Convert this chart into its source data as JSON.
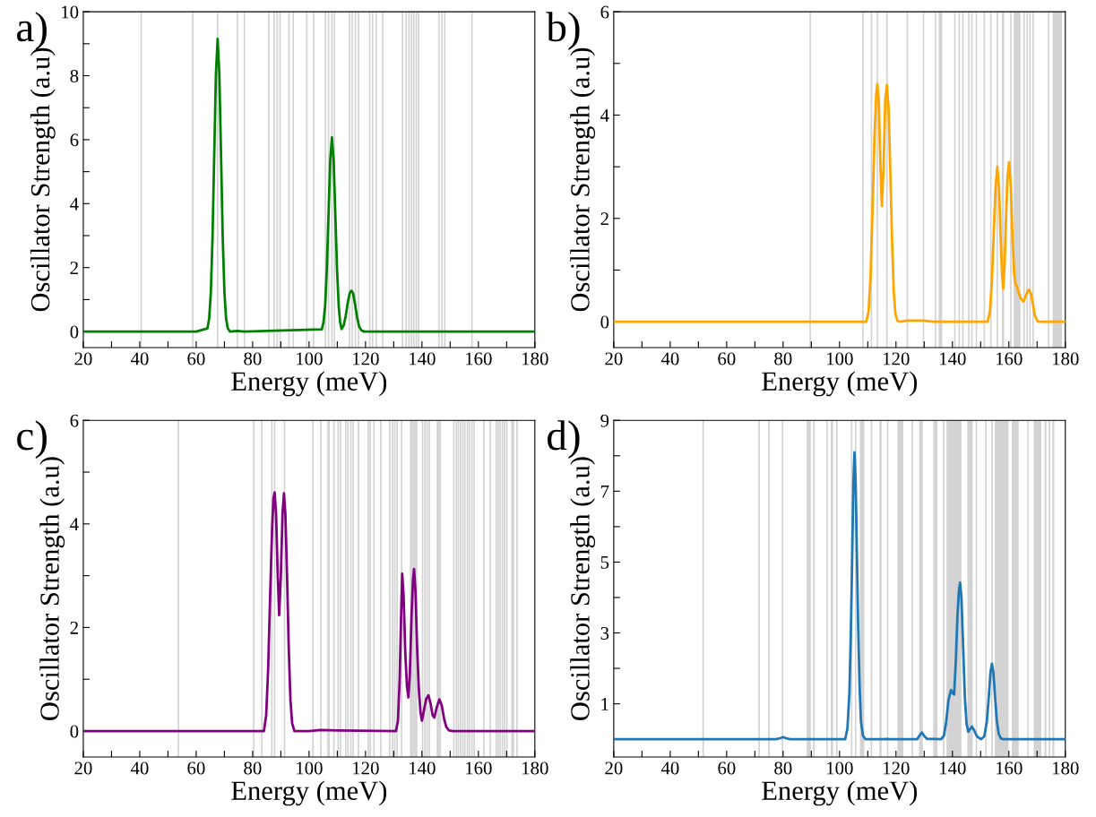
{
  "chart_data": [
    {
      "type": "line",
      "title": "a)",
      "xlabel": "Energy (meV)",
      "ylabel": "Oscillator Strength (a.u)",
      "xlim": [
        20,
        180
      ],
      "ylim": [
        -0.5,
        10
      ],
      "xticks": [
        20,
        {
          "value": 30,
          "label": null
        },
        40,
        {
          "value": 50,
          "label": null
        },
        60,
        {
          "value": 70,
          "label": null
        },
        80,
        {
          "value": 90,
          "label": null
        },
        100,
        {
          "value": 110,
          "label": null
        },
        120,
        {
          "value": 130,
          "label": null
        },
        140,
        {
          "value": 150,
          "label": null
        },
        160,
        {
          "value": 170,
          "label": null
        },
        180
      ],
      "yticks": [
        0,
        {
          "value": 1,
          "label": null
        },
        2,
        {
          "value": 3,
          "label": null
        },
        4,
        {
          "value": 5,
          "label": null
        },
        6,
        {
          "value": 7,
          "label": null
        },
        8,
        {
          "value": 9,
          "label": null
        },
        10
      ],
      "grid": false,
      "legend": false,
      "marker": "none",
      "line_style": "solid",
      "series": [
        {
          "color": "#008000",
          "x": [
            20,
            60,
            64.0,
            64.6,
            65.2,
            65.8,
            66.4,
            67.0,
            67.6,
            68.2,
            68.8,
            69.4,
            70.0,
            70.6,
            71.2,
            72,
            74.6,
            77,
            104.5,
            105.1,
            105.7,
            106.3,
            106.9,
            107.5,
            108.1,
            108.7,
            109.3,
            109.9,
            110.5,
            111.0,
            111.5,
            112.3,
            113.0,
            113.7,
            114.4,
            115.0,
            115.6,
            116.3,
            117.0,
            117.7,
            118.5,
            119.5,
            180
          ],
          "values": [
            0,
            0,
            0.1,
            0.4,
            1.24,
            2.97,
            5.55,
            8.07,
            9.15,
            8.07,
            5.55,
            2.97,
            1.24,
            0.4,
            0.1,
            0,
            0.02,
            0,
            0.07,
            0.27,
            0.82,
            1.97,
            3.68,
            5.36,
            6.07,
            5.36,
            3.68,
            1.97,
            0.8,
            0.3,
            0.08,
            0.2,
            0.5,
            0.9,
            1.2,
            1.28,
            1.2,
            0.85,
            0.45,
            0.17,
            0.04,
            0,
            0
          ]
        }
      ],
      "ref_lines": [
        {
          "axis": "x",
          "value": 40.5,
          "color": "#d3d3d3"
        },
        {
          "axis": "x",
          "value": 58.8,
          "color": "#d3d3d3"
        },
        {
          "axis": "x",
          "value": 67.6,
          "color": "#d3d3d3"
        },
        {
          "axis": "x",
          "value": 74.6,
          "color": "#d3d3d3"
        },
        {
          "axis": "x",
          "value": 77.1,
          "color": "#d3d3d3"
        },
        {
          "axis": "x",
          "value": 85.7,
          "color": "#d3d3d3"
        },
        {
          "axis": "x",
          "value": 87.6,
          "color": "#d3d3d3"
        },
        {
          "axis": "x",
          "value": 88.7,
          "color": "#d3d3d3"
        },
        {
          "axis": "x",
          "value": 89.7,
          "color": "#d3d3d3"
        },
        {
          "axis": "x",
          "value": 92.9,
          "color": "#d3d3d3"
        },
        {
          "axis": "x",
          "value": 94.4,
          "color": "#d3d3d3"
        },
        {
          "axis": "x",
          "value": 99.2,
          "color": "#d3d3d3"
        },
        {
          "axis": "x",
          "value": 101.6,
          "color": "#d3d3d3"
        },
        {
          "axis": "x",
          "value": 105.8,
          "color": "#d3d3d3"
        },
        {
          "axis": "x",
          "value": 106.9,
          "color": "#d3d3d3"
        },
        {
          "axis": "x",
          "value": 108.1,
          "color": "#d3d3d3"
        },
        {
          "axis": "x",
          "value": 109.0,
          "color": "#d3d3d3"
        },
        {
          "axis": "x",
          "value": 114.3,
          "color": "#d3d3d3"
        },
        {
          "axis": "x",
          "value": 115.3,
          "color": "#d3d3d3"
        },
        {
          "axis": "x",
          "value": 116.4,
          "color": "#d3d3d3"
        },
        {
          "axis": "x",
          "value": 117.5,
          "color": "#d3d3d3"
        },
        {
          "axis": "x",
          "value": 121.5,
          "color": "#d3d3d3"
        },
        {
          "axis": "x",
          "value": 122.5,
          "color": "#d3d3d3"
        },
        {
          "axis": "x",
          "value": 123.8,
          "color": "#d3d3d3"
        },
        {
          "axis": "x",
          "value": 126.1,
          "color": "#d3d3d3"
        },
        {
          "axis": "x",
          "value": 133.1,
          "color": "#d3d3d3"
        },
        {
          "axis": "x",
          "value": 134.4,
          "color": "#d3d3d3"
        },
        {
          "axis": "x",
          "value": 135.4,
          "color": "#d3d3d3"
        },
        {
          "axis": "x",
          "value": 136.3,
          "color": "#d3d3d3"
        },
        {
          "axis": "x",
          "value": 137.1,
          "color": "#d3d3d3"
        },
        {
          "axis": "x",
          "value": 138.0,
          "color": "#d3d3d3"
        },
        {
          "axis": "x",
          "value": 138.8,
          "color": "#d3d3d3"
        },
        {
          "axis": "x",
          "value": 146.0,
          "color": "#d3d3d3"
        },
        {
          "axis": "x",
          "value": 147.1,
          "color": "#d3d3d3"
        },
        {
          "axis": "x",
          "value": 148.1,
          "color": "#d3d3d3"
        },
        {
          "axis": "x",
          "value": 157.7,
          "color": "#d3d3d3"
        }
      ]
    },
    {
      "type": "line",
      "title": "b)",
      "xlabel": "Energy (meV)",
      "ylabel": "Oscillator Strength (a.u)",
      "xlim": [
        20,
        180
      ],
      "ylim": [
        -0.5,
        6
      ],
      "xticks": [
        20,
        {
          "value": 30,
          "label": null
        },
        40,
        {
          "value": 50,
          "label": null
        },
        60,
        {
          "value": 70,
          "label": null
        },
        80,
        {
          "value": 90,
          "label": null
        },
        100,
        {
          "value": 110,
          "label": null
        },
        120,
        {
          "value": 130,
          "label": null
        },
        140,
        {
          "value": 150,
          "label": null
        },
        160,
        {
          "value": 170,
          "label": null
        },
        180
      ],
      "yticks": [
        0,
        {
          "value": 1,
          "label": null
        },
        2,
        {
          "value": 3,
          "label": null
        },
        4,
        {
          "value": 5,
          "label": null
        },
        6
      ],
      "grid": false,
      "legend": false,
      "marker": "none",
      "line_style": "solid",
      "series": [
        {
          "color": "#ffa500",
          "x": [
            20,
            109.5,
            110.3,
            111.0,
            111.7,
            112.4,
            113.0,
            113.4,
            113.9,
            114.5,
            115.0,
            115.6,
            116.2,
            116.8,
            117.4,
            118.0,
            118.6,
            119.2,
            119.8,
            120.5,
            121.5,
            124,
            130,
            133,
            152.5,
            153.3,
            154.0,
            154.7,
            155.3,
            155.9,
            156.5,
            157.1,
            157.6,
            158.0,
            158.5,
            159.0,
            159.5,
            160.1,
            160.7,
            161.3,
            161.9,
            162.4,
            162.8,
            163.4,
            164.2,
            165.2,
            166.0,
            166.7,
            167.2,
            167.8,
            168.5,
            169.2,
            170.2,
            171,
            180
          ],
          "values": [
            0,
            0,
            0.2,
            0.9,
            2.2,
            3.6,
            4.4,
            4.6,
            4.3,
            3.0,
            2.24,
            3.0,
            4.3,
            4.58,
            4.1,
            2.9,
            1.6,
            0.6,
            0.15,
            0.02,
            0,
            0.02,
            0.02,
            0,
            0,
            0.2,
            0.8,
            1.8,
            2.6,
            3.0,
            2.6,
            1.6,
            0.9,
            0.64,
            1.1,
            2.0,
            2.8,
            3.09,
            2.6,
            1.6,
            0.9,
            0.72,
            0.69,
            0.58,
            0.45,
            0.39,
            0.5,
            0.6,
            0.62,
            0.55,
            0.35,
            0.12,
            0.01,
            0,
            0
          ]
        }
      ],
      "ref_lines": [
        {
          "axis": "x",
          "value": 89.6,
          "color": "#d3d3d3"
        },
        {
          "axis": "x",
          "value": 108.3,
          "color": "#d3d3d3"
        },
        {
          "axis": "x",
          "value": 111.3,
          "color": "#d3d3d3"
        },
        {
          "axis": "x",
          "value": 113.4,
          "color": "#d3d3d3"
        },
        {
          "axis": "x",
          "value": 116.8,
          "color": "#d3d3d3"
        },
        {
          "axis": "x",
          "value": 124.0,
          "color": "#d3d3d3"
        },
        {
          "axis": "x",
          "value": 134.0,
          "color": "#d3d3d3"
        },
        {
          "axis": "x",
          "value": 142.4,
          "color": "#d3d3d3"
        },
        {
          "axis": "x",
          "value": 143.7,
          "color": "#d3d3d3"
        },
        {
          "axis": "x",
          "value": 145.8,
          "color": "#d3d3d3"
        },
        {
          "axis": "x",
          "value": 146.9,
          "color": "#d3d3d3"
        },
        {
          "axis": "x",
          "value": 148.5,
          "color": "#d3d3d3"
        },
        {
          "axis": "x",
          "value": 151.3,
          "color": "#d3d3d3"
        },
        {
          "axis": "x",
          "value": 153.6,
          "color": "#d3d3d3"
        },
        {
          "axis": "x",
          "value": 155.9,
          "color": "#d3d3d3"
        },
        {
          "axis": "x",
          "value": 160.7,
          "color": "#d3d3d3"
        },
        {
          "axis": "x",
          "value": 165.4,
          "color": "#d3d3d3"
        },
        {
          "axis": "x",
          "value": 166.5,
          "color": "#d3d3d3"
        },
        {
          "axis": "x",
          "value": 167.5,
          "color": "#d3d3d3"
        },
        {
          "axis": "x",
          "value": 168.6,
          "color": "#d3d3d3"
        },
        {
          "axis": "x",
          "value": 174.1,
          "color": "#d3d3d3"
        }
      ],
      "bands": [
        {
          "axis": "x",
          "from": 129.5,
          "to": 130.0,
          "color": "#d3d3d3"
        },
        {
          "axis": "x",
          "from": 135.1,
          "to": 136.4,
          "color": "#d3d3d3"
        },
        {
          "axis": "x",
          "from": 140.6,
          "to": 141.1,
          "color": "#d3d3d3"
        },
        {
          "axis": "x",
          "from": 157.5,
          "to": 158.3,
          "color": "#d3d3d3"
        },
        {
          "axis": "x",
          "from": 161.7,
          "to": 164.1,
          "color": "#d3d3d3"
        },
        {
          "axis": "x",
          "from": 175.5,
          "to": 178.8,
          "color": "#d3d3d3"
        }
      ]
    },
    {
      "type": "line",
      "title": "c)",
      "xlabel": "Energy (meV)",
      "ylabel": "Oscillator Strength (a.u)",
      "xlim": [
        20,
        180
      ],
      "ylim": [
        -0.5,
        6
      ],
      "xticks": [
        20,
        {
          "value": 30,
          "label": null
        },
        40,
        {
          "value": 50,
          "label": null
        },
        60,
        {
          "value": 70,
          "label": null
        },
        80,
        {
          "value": 90,
          "label": null
        },
        100,
        {
          "value": 110,
          "label": null
        },
        120,
        {
          "value": 130,
          "label": null
        },
        140,
        {
          "value": 150,
          "label": null
        },
        160,
        {
          "value": 170,
          "label": null
        },
        180
      ],
      "yticks": [
        0,
        {
          "value": 1,
          "label": null
        },
        2,
        {
          "value": 3,
          "label": null
        },
        4,
        {
          "value": 5,
          "label": null
        },
        6
      ],
      "grid": false,
      "legend": false,
      "marker": "none",
      "line_style": "solid",
      "series": [
        {
          "color": "#800080",
          "x": [
            20,
            84,
            84.8,
            85.5,
            86.2,
            86.9,
            87.4,
            87.8,
            88.3,
            88.9,
            89.4,
            90.0,
            90.6,
            91.1,
            91.6,
            92.2,
            92.8,
            93.4,
            94.0,
            94.8,
            100,
            104,
            110,
            130.8,
            131.5,
            132.1,
            132.6,
            133.0,
            133.5,
            134.1,
            134.7,
            135.2,
            135.7,
            136.3,
            136.8,
            137.2,
            137.7,
            138.3,
            138.9,
            139.5,
            140.0,
            140.7,
            141.5,
            142.3,
            143.1,
            143.8,
            144.4,
            145.2,
            146.2,
            147.0,
            147.8,
            148.6,
            149.6,
            151,
            180
          ],
          "values": [
            0,
            0,
            0.3,
            1.2,
            2.6,
            3.9,
            4.5,
            4.61,
            4.2,
            3.0,
            2.24,
            3.0,
            4.2,
            4.59,
            4.2,
            3.0,
            1.6,
            0.6,
            0.15,
            0,
            0,
            0.02,
            0.01,
            0,
            0.2,
            1.0,
            2.2,
            3.04,
            2.6,
            1.5,
            0.85,
            0.65,
            1.1,
            2.2,
            2.9,
            3.13,
            2.7,
            1.6,
            0.8,
            0.35,
            0.2,
            0.4,
            0.62,
            0.69,
            0.52,
            0.3,
            0.26,
            0.45,
            0.61,
            0.5,
            0.25,
            0.08,
            0.01,
            0,
            0
          ]
        }
      ],
      "ref_lines": [
        {
          "axis": "x",
          "value": 53.7,
          "color": "#d3d3d3"
        },
        {
          "axis": "x",
          "value": 80.4,
          "color": "#d3d3d3"
        },
        {
          "axis": "x",
          "value": 83.3,
          "color": "#d3d3d3"
        },
        {
          "axis": "x",
          "value": 86.8,
          "color": "#d3d3d3"
        },
        {
          "axis": "x",
          "value": 87.8,
          "color": "#d3d3d3"
        },
        {
          "axis": "x",
          "value": 91.3,
          "color": "#d3d3d3"
        },
        {
          "axis": "x",
          "value": 101.4,
          "color": "#d3d3d3"
        },
        {
          "axis": "x",
          "value": 104.2,
          "color": "#d3d3d3"
        },
        {
          "axis": "x",
          "value": 106.7,
          "color": "#d3d3d3"
        },
        {
          "axis": "x",
          "value": 107.1,
          "color": "#d3d3d3"
        },
        {
          "axis": "x",
          "value": 108.8,
          "color": "#d3d3d3"
        },
        {
          "axis": "x",
          "value": 110.3,
          "color": "#d3d3d3"
        },
        {
          "axis": "x",
          "value": 111.1,
          "color": "#d3d3d3"
        },
        {
          "axis": "x",
          "value": 113.0,
          "color": "#d3d3d3"
        },
        {
          "axis": "x",
          "value": 113.8,
          "color": "#d3d3d3"
        },
        {
          "axis": "x",
          "value": 114.8,
          "color": "#d3d3d3"
        },
        {
          "axis": "x",
          "value": 115.6,
          "color": "#d3d3d3"
        },
        {
          "axis": "x",
          "value": 117.5,
          "color": "#d3d3d3"
        },
        {
          "axis": "x",
          "value": 121.0,
          "color": "#d3d3d3"
        },
        {
          "axis": "x",
          "value": 121.7,
          "color": "#d3d3d3"
        },
        {
          "axis": "x",
          "value": 123.0,
          "color": "#d3d3d3"
        },
        {
          "axis": "x",
          "value": 125.4,
          "color": "#d3d3d3"
        },
        {
          "axis": "x",
          "value": 128.6,
          "color": "#d3d3d3"
        },
        {
          "axis": "x",
          "value": 129.6,
          "color": "#d3d3d3"
        },
        {
          "axis": "x",
          "value": 130.4,
          "color": "#d3d3d3"
        },
        {
          "axis": "x",
          "value": 131.2,
          "color": "#d3d3d3"
        },
        {
          "axis": "x",
          "value": 132.8,
          "color": "#d3d3d3"
        },
        {
          "axis": "x",
          "value": 136.0,
          "color": "#d3d3d3"
        },
        {
          "axis": "x",
          "value": 136.5,
          "color": "#d3d3d3"
        },
        {
          "axis": "x",
          "value": 137.0,
          "color": "#d3d3d3"
        },
        {
          "axis": "x",
          "value": 137.6,
          "color": "#d3d3d3"
        },
        {
          "axis": "x",
          "value": 138.1,
          "color": "#d3d3d3"
        },
        {
          "axis": "x",
          "value": 140.2,
          "color": "#d3d3d3"
        },
        {
          "axis": "x",
          "value": 141.0,
          "color": "#d3d3d3"
        },
        {
          "axis": "x",
          "value": 141.8,
          "color": "#d3d3d3"
        },
        {
          "axis": "x",
          "value": 142.6,
          "color": "#d3d3d3"
        },
        {
          "axis": "x",
          "value": 145.5,
          "color": "#d3d3d3"
        },
        {
          "axis": "x",
          "value": 146.0,
          "color": "#d3d3d3"
        },
        {
          "axis": "x",
          "value": 146.5,
          "color": "#d3d3d3"
        },
        {
          "axis": "x",
          "value": 151.3,
          "color": "#d3d3d3"
        },
        {
          "axis": "x",
          "value": 152.2,
          "color": "#d3d3d3"
        },
        {
          "axis": "x",
          "value": 152.9,
          "color": "#d3d3d3"
        },
        {
          "axis": "x",
          "value": 153.7,
          "color": "#d3d3d3"
        },
        {
          "axis": "x",
          "value": 154.5,
          "color": "#d3d3d3"
        },
        {
          "axis": "x",
          "value": 155.2,
          "color": "#d3d3d3"
        },
        {
          "axis": "x",
          "value": 156.1,
          "color": "#d3d3d3"
        },
        {
          "axis": "x",
          "value": 156.8,
          "color": "#d3d3d3"
        },
        {
          "axis": "x",
          "value": 157.7,
          "color": "#d3d3d3"
        },
        {
          "axis": "x",
          "value": 158.5,
          "color": "#d3d3d3"
        },
        {
          "axis": "x",
          "value": 161.9,
          "color": "#d3d3d3"
        },
        {
          "axis": "x",
          "value": 164.2,
          "color": "#d3d3d3"
        },
        {
          "axis": "x",
          "value": 166.3,
          "color": "#d3d3d3"
        },
        {
          "axis": "x",
          "value": 167.0,
          "color": "#d3d3d3"
        },
        {
          "axis": "x",
          "value": 167.7,
          "color": "#d3d3d3"
        },
        {
          "axis": "x",
          "value": 168.5,
          "color": "#d3d3d3"
        },
        {
          "axis": "x",
          "value": 169.3,
          "color": "#d3d3d3"
        },
        {
          "axis": "x",
          "value": 170.1,
          "color": "#d3d3d3"
        },
        {
          "axis": "x",
          "value": 171.9,
          "color": "#d3d3d3"
        },
        {
          "axis": "x",
          "value": 172.4,
          "color": "#d3d3d3"
        },
        {
          "axis": "x",
          "value": 173.7,
          "color": "#d3d3d3"
        }
      ]
    },
    {
      "type": "line",
      "title": "d)",
      "xlabel": "Energy (meV)",
      "ylabel": "Oscillator Strength (a.u)",
      "xlim": [
        20,
        180
      ],
      "ylim": [
        -0.5,
        9
      ],
      "xticks": [
        20,
        {
          "value": 30,
          "label": null
        },
        40,
        {
          "value": 50,
          "label": null
        },
        60,
        {
          "value": 70,
          "label": null
        },
        80,
        {
          "value": 90,
          "label": null
        },
        100,
        {
          "value": 110,
          "label": null
        },
        120,
        {
          "value": 130,
          "label": null
        },
        140,
        {
          "value": 150,
          "label": null
        },
        160,
        {
          "value": 170,
          "label": null
        },
        180
      ],
      "yticks": [
        1,
        {
          "value": 2,
          "label": null
        },
        3,
        {
          "value": 4,
          "label": null
        },
        5,
        {
          "value": 6,
          "label": null
        },
        7,
        {
          "value": 8,
          "label": null
        },
        9
      ],
      "legend": false,
      "marker": "none",
      "line_style": "solid",
      "series": [
        {
          "color": "#1f77b4",
          "x": [
            20,
            77.5,
            79.0,
            80.0,
            81.0,
            82.5,
            102.0,
            102.8,
            103.5,
            104.0,
            104.5,
            104.9,
            105.3,
            105.7,
            106.1,
            106.6,
            107.1,
            107.6,
            108.3,
            109.2,
            115.5,
            116.8,
            118,
            127.5,
            128.3,
            129.2,
            130.1,
            131,
            133.7,
            136.0,
            137.0,
            137.8,
            138.6,
            139.5,
            140.1,
            140.6,
            141.2,
            141.8,
            142.3,
            142.7,
            143.2,
            143.8,
            144.4,
            145.0,
            145.6,
            146.2,
            146.9,
            147.7,
            148.7,
            150.1,
            151.3,
            152.2,
            152.9,
            153.5,
            154.0,
            154.5,
            155.1,
            155.7,
            156.4,
            157.2,
            158,
            180
          ],
          "values": [
            0,
            0,
            0.03,
            0.06,
            0.03,
            0,
            0,
            0.3,
            1.3,
            3.0,
            5.2,
            7.2,
            8.1,
            7.3,
            5.5,
            3.2,
            1.5,
            0.5,
            0.1,
            0,
            0,
            0.01,
            0,
            0,
            0.1,
            0.19,
            0.08,
            0.01,
            0.01,
            0,
            0.1,
            0.5,
            1.1,
            1.39,
            1.3,
            1.26,
            2.2,
            3.5,
            4.2,
            4.42,
            4.0,
            2.6,
            1.2,
            0.45,
            0.21,
            0.28,
            0.36,
            0.25,
            0.08,
            0.0,
            0.08,
            0.5,
            1.2,
            1.9,
            2.13,
            1.9,
            1.2,
            0.55,
            0.15,
            0.02,
            0,
            0
          ]
        }
      ],
      "ref_lines": [
        {
          "axis": "x",
          "value": 71.5,
          "color": "#d3d3d3"
        },
        {
          "axis": "x",
          "value": 79.8,
          "color": "#d3d3d3"
        },
        {
          "axis": "x",
          "value": 90.9,
          "color": "#d3d3d3"
        },
        {
          "axis": "x",
          "value": 95.6,
          "color": "#d3d3d3"
        },
        {
          "axis": "x",
          "value": 104.3,
          "color": "#d3d3d3"
        },
        {
          "axis": "x",
          "value": 105.7,
          "color": "#d3d3d3"
        },
        {
          "axis": "x",
          "value": 111.3,
          "color": "#d3d3d3"
        },
        {
          "axis": "x",
          "value": 125.8,
          "color": "#d3d3d3"
        },
        {
          "axis": "x",
          "value": 136.9,
          "color": "#d3d3d3"
        },
        {
          "axis": "x",
          "value": 148.5,
          "color": "#d3d3d3"
        },
        {
          "axis": "x",
          "value": 151.9,
          "color": "#d3d3d3"
        },
        {
          "axis": "x",
          "value": 154.0,
          "color": "#d3d3d3"
        },
        {
          "axis": "x",
          "value": 174.4,
          "color": "#d3d3d3"
        }
      ],
      "bands": [
        {
          "axis": "x",
          "from": 51.4,
          "to": 52.0,
          "color": "#d3d3d3"
        },
        {
          "axis": "x",
          "from": 74.7,
          "to": 75.3,
          "color": "#d3d3d3"
        },
        {
          "axis": "x",
          "from": 88.4,
          "to": 89.8,
          "color": "#d3d3d3"
        },
        {
          "axis": "x",
          "from": 96.9,
          "to": 97.7,
          "color": "#d3d3d3"
        },
        {
          "axis": "x",
          "from": 98.8,
          "to": 99.3,
          "color": "#d3d3d3"
        },
        {
          "axis": "x",
          "from": 107.2,
          "to": 108.8,
          "color": "#d3d3d3"
        },
        {
          "axis": "x",
          "from": 114.1,
          "to": 114.9,
          "color": "#d3d3d3"
        },
        {
          "axis": "x",
          "from": 116.8,
          "to": 117.3,
          "color": "#d3d3d3"
        },
        {
          "axis": "x",
          "from": 120.5,
          "to": 122.6,
          "color": "#d3d3d3"
        },
        {
          "axis": "x",
          "from": 128.2,
          "to": 129.5,
          "color": "#d3d3d3"
        },
        {
          "axis": "x",
          "from": 133.2,
          "to": 134.7,
          "color": "#d3d3d3"
        },
        {
          "axis": "x",
          "from": 137.9,
          "to": 143.2,
          "color": "#d3d3d3"
        },
        {
          "axis": "x",
          "from": 145.3,
          "to": 147.2,
          "color": "#d3d3d3"
        },
        {
          "axis": "x",
          "from": 155.0,
          "to": 159.9,
          "color": "#d3d3d3"
        },
        {
          "axis": "x",
          "from": 161.0,
          "to": 163.5,
          "color": "#d3d3d3"
        },
        {
          "axis": "x",
          "from": 166.5,
          "to": 167.0,
          "color": "#d3d3d3"
        },
        {
          "axis": "x",
          "from": 168.8,
          "to": 171.5,
          "color": "#d3d3d3"
        },
        {
          "axis": "x",
          "from": 172.6,
          "to": 173.3,
          "color": "#d3d3d3"
        },
        {
          "axis": "x",
          "from": 175.4,
          "to": 176.1,
          "color": "#d3d3d3"
        }
      ]
    }
  ]
}
